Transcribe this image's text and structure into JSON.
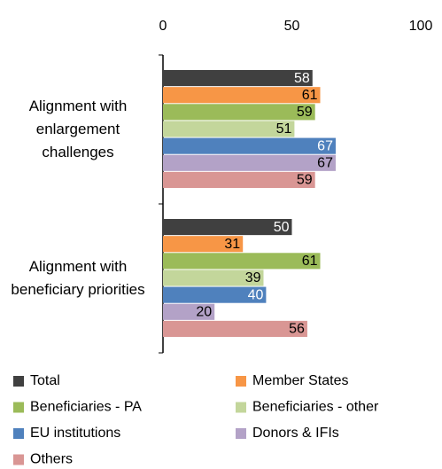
{
  "chart_data": {
    "type": "bar",
    "orientation": "horizontal",
    "categories": [
      "Alignment with enlargement challenges",
      "Alignment with beneficiary priorities"
    ],
    "series": [
      {
        "name": "Total",
        "color": "#404040",
        "values": [
          58,
          50
        ]
      },
      {
        "name": "Member States",
        "color": "#f79646",
        "values": [
          61,
          31
        ]
      },
      {
        "name": "Beneficiaries - PA",
        "color": "#9bbb59",
        "values": [
          59,
          61
        ]
      },
      {
        "name": "Beneficiaries - other",
        "color": "#c3d69b",
        "values": [
          51,
          39
        ]
      },
      {
        "name": "EU institutions",
        "color": "#4f81bd",
        "values": [
          67,
          40
        ]
      },
      {
        "name": "Donors & IFIs",
        "color": "#b3a2c7",
        "values": [
          67,
          20
        ]
      },
      {
        "name": "Others",
        "color": "#d99694",
        "values": [
          59,
          56
        ]
      }
    ],
    "xlim": [
      0,
      100
    ],
    "xticks": [
      0,
      50,
      100
    ],
    "grid": false
  }
}
